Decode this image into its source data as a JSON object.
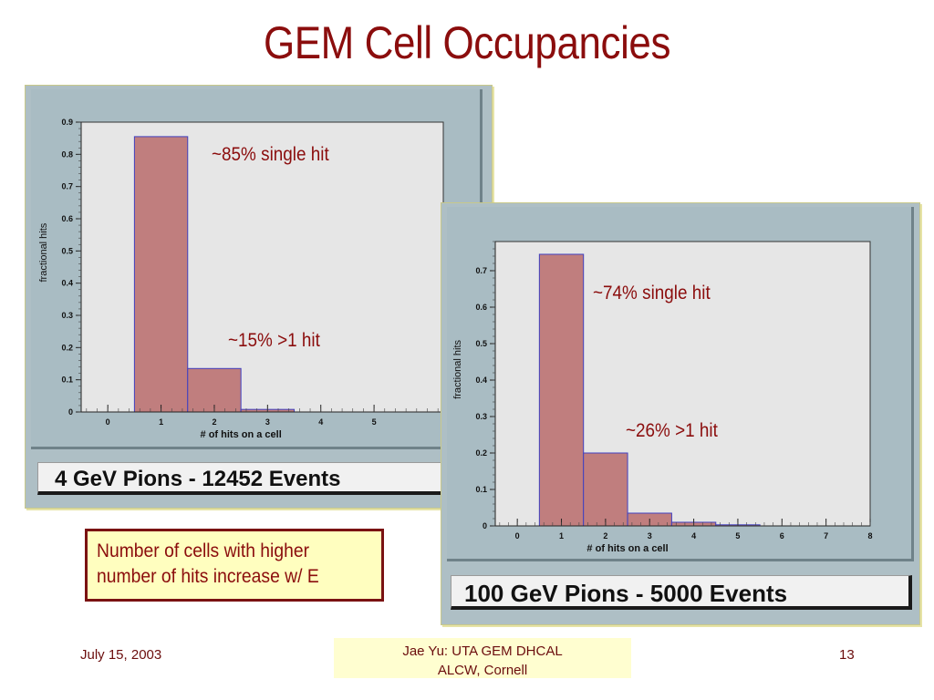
{
  "slide": {
    "title": "GEM Cell Occupancies",
    "note_lines": [
      "Number of cells with higher",
      "number of hits increase w/ E"
    ],
    "footer_date": "July 15, 2003",
    "footer_center_lines": [
      "Jae Yu: UTA GEM DHCAL",
      "ALCW, Cornell"
    ],
    "page_number": "13"
  },
  "colors": {
    "title": "#8b0d0d",
    "bar_fill": "#c07e7e",
    "bar_edge": "#4040c0",
    "plot_bg": "#e6e6e6",
    "frame_bg": "#aebfc5"
  },
  "chart_data": [
    {
      "type": "bar",
      "caption": "4 GeV Pions - 12452 Events",
      "xlabel": "# of hits on a cell",
      "ylabel": "fractional hits",
      "xlim": [
        -0.5,
        6.3
      ],
      "ylim": [
        0,
        0.9
      ],
      "x_ticks": [
        "0",
        "1",
        "2",
        "3",
        "4",
        "5"
      ],
      "y_ticks": [
        "0",
        "0.1",
        "0.2",
        "0.3",
        "0.4",
        "0.5",
        "0.6",
        "0.7",
        "0.8",
        "0.9"
      ],
      "categories": [
        1,
        2,
        3
      ],
      "values": [
        0.855,
        0.135,
        0.008
      ],
      "annotations": [
        "~85% single hit",
        "~15%  >1 hit"
      ]
    },
    {
      "type": "bar",
      "caption": "100 GeV Pions - 5000 Events",
      "xlabel": "# of hits on a cell",
      "ylabel": "fractional hits",
      "xlim": [
        -0.5,
        8
      ],
      "ylim": [
        0,
        0.78
      ],
      "x_ticks": [
        "0",
        "1",
        "2",
        "3",
        "4",
        "5",
        "6",
        "7",
        "8"
      ],
      "y_ticks": [
        "0",
        "0.1",
        "0.2",
        "0.3",
        "0.4",
        "0.5",
        "0.6",
        "0.7"
      ],
      "categories": [
        1,
        2,
        3,
        4,
        5
      ],
      "values": [
        0.745,
        0.2,
        0.035,
        0.01,
        0.003
      ],
      "annotations": [
        "~74% single hit",
        "~26%  >1 hit"
      ]
    }
  ]
}
